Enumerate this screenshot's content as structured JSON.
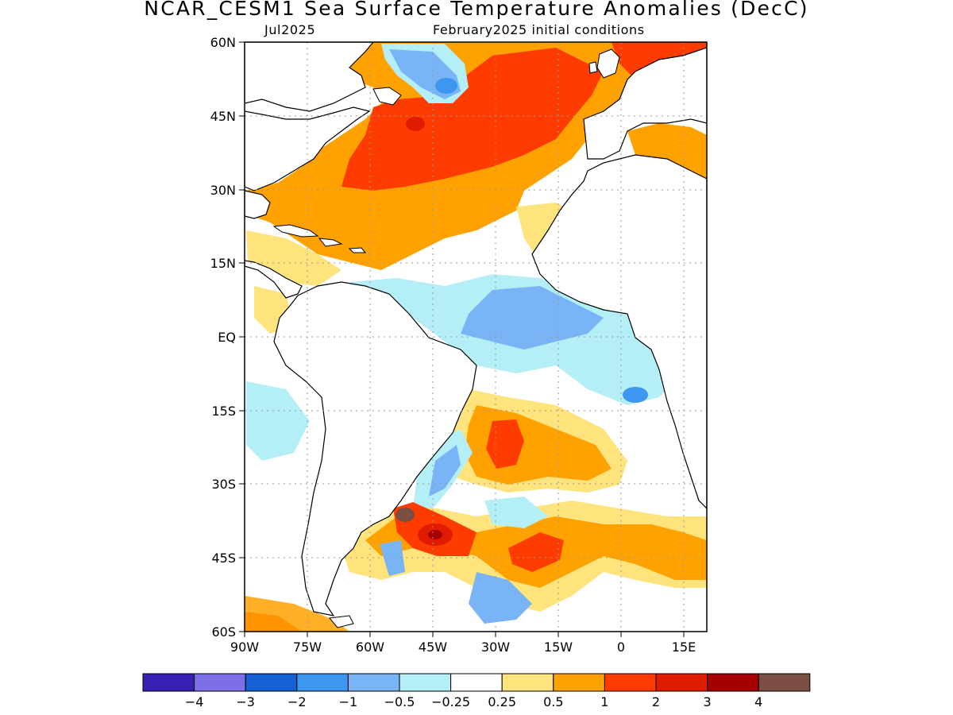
{
  "title": "NCAR_CESM1 Sea Surface Temperature Anomalies (DecC)",
  "subtitle_left": "Jul2025",
  "subtitle_right": "February2025 initial conditions",
  "map": {
    "region": "Atlantic Ocean",
    "lat_range": [
      -60,
      60
    ],
    "lon_range": [
      -90,
      20
    ],
    "lat_ticks": [
      "60N",
      "45N",
      "30N",
      "15N",
      "EQ",
      "15S",
      "30S",
      "45S",
      "60S"
    ],
    "lon_ticks": [
      "90W",
      "75W",
      "60W",
      "45W",
      "30W",
      "15W",
      "0",
      "15E"
    ],
    "grid": "dotted"
  },
  "colorbar": {
    "colors": [
      "#3a1fb5",
      "#7d6fe8",
      "#1660d6",
      "#3d96f0",
      "#79b5f6",
      "#b4eef7",
      "#ffffff",
      "#ffe37d",
      "#ffa200",
      "#ff3c00",
      "#e01c00",
      "#a80000",
      "#7a4e42"
    ],
    "labels": [
      "−4",
      "−3",
      "−2",
      "−1",
      "−0.5",
      "−0.25",
      "0.25",
      "0.5",
      "1",
      "2",
      "3",
      "4"
    ]
  }
}
